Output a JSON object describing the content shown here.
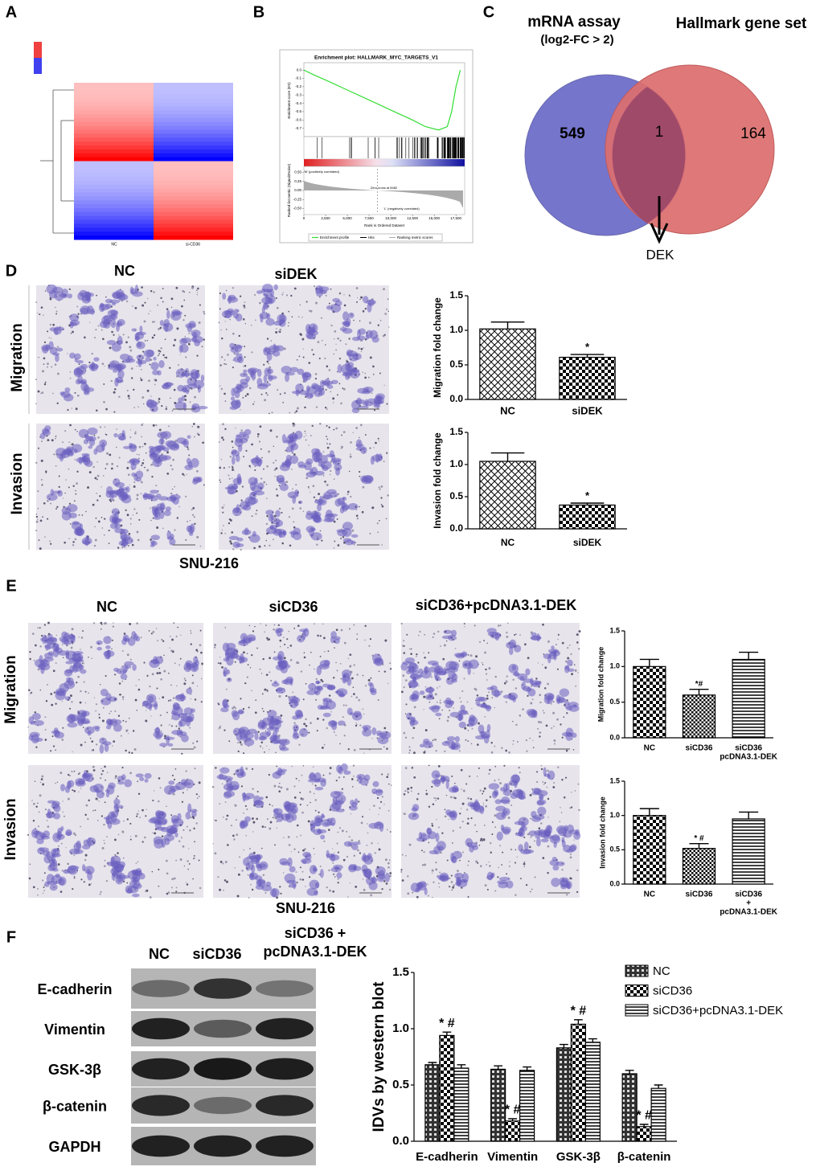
{
  "panel_labels": [
    "A",
    "B",
    "C",
    "D",
    "E",
    "F"
  ],
  "heatmap": {
    "columns": [
      "NC",
      "si-CD36"
    ]
  },
  "venn": {
    "left_title": "mRNA assay",
    "left_subtitle": "(log2-FC > 2)",
    "right_title": "Hallmark gene set",
    "left_only": 549,
    "both": 1,
    "right_only": 164,
    "gene": "DEK"
  },
  "panel_d": {
    "columns": [
      "NC",
      "siDEK"
    ],
    "rows": [
      "Migration",
      "Invasion"
    ],
    "cell_line": "SNU-216"
  },
  "panel_e": {
    "columns": [
      "NC",
      "siCD36",
      "siCD36+pcDNA3.1-DEK"
    ],
    "rows": [
      "Migration",
      "Invasion"
    ],
    "cell_line": "SNU-216"
  },
  "panel_f": {
    "columns": [
      "NC",
      "siCD36",
      [
        "siCD36 +",
        "pcDNA3.1-DEK"
      ]
    ],
    "proteins": [
      "E-cadherin",
      "Vimentin",
      "GSK-3β",
      "β-catenin",
      "GAPDH"
    ]
  },
  "chart_data": [
    {
      "type": "line",
      "title": "Enrichment plot: HALLMARK_MYC_TARGETS_V1",
      "y_label": "Enrichment score (ES)",
      "y2_label": "Ranked list metric (Signal2Noise)",
      "x_label": "Rank in Ordered Dataset",
      "x": [
        0,
        1000,
        2500,
        5000,
        7500,
        10000,
        12500,
        14000,
        15500,
        16500,
        17000,
        17500,
        18000
      ],
      "series": [
        {
          "name": "Enrichment profile",
          "color": "#33dd33",
          "values": [
            0,
            -0.05,
            -0.12,
            -0.24,
            -0.36,
            -0.48,
            -0.6,
            -0.68,
            -0.72,
            -0.68,
            -0.5,
            -0.2,
            0
          ]
        }
      ],
      "legend_extra": [
        "Hits",
        "Ranking metric scores"
      ],
      "positive_label": "'M' (positively correlated)",
      "negative_label": "'L' (negatively correlated)",
      "zero_cross_label": "Zero cross at 8462",
      "zero_cross": 8462,
      "xlim": [
        0,
        18500
      ],
      "xticks": [
        0,
        {
          "value": 2500,
          "label": "2,500"
        },
        {
          "value": 5000,
          "label": "5,000"
        },
        {
          "value": 7500,
          "label": "7,500"
        },
        {
          "value": 10000,
          "label": "10,000"
        },
        {
          "value": 12500,
          "label": "12,500"
        },
        {
          "value": 15000,
          "label": "15,000"
        },
        {
          "value": 17500,
          "label": "17,500"
        }
      ],
      "ylim": [
        -0.8,
        0.05
      ],
      "yticks": [
        {
          "value": 0,
          "label": "0.0"
        },
        -0.1,
        -0.2,
        -0.3,
        -0.4,
        -0.5,
        -0.6,
        -0.7
      ],
      "y2lim": [
        -0.6,
        0.6
      ],
      "y2ticks": [
        {
          "value": 0.5,
          "label": "0.50"
        },
        0.25,
        {
          "value": 0,
          "label": "0.00"
        },
        -0.25,
        {
          "value": -0.5,
          "label": "-0.50"
        }
      ]
    },
    {
      "type": "bar",
      "y_label": "Migration fold change",
      "categories": [
        "NC",
        "siDEK"
      ],
      "series": [
        {
          "values": [
            1.02,
            0.61
          ],
          "errors": [
            0.1,
            0.04
          ]
        }
      ],
      "patterns": [
        "crosshatch",
        "checker"
      ],
      "annotations": [
        {
          "series": 0,
          "index": 1,
          "text": "*"
        }
      ],
      "ylim": [
        0,
        1.5
      ],
      "yticks": [
        {
          "value": 0,
          "label": "0.0"
        },
        0.5,
        {
          "value": 1,
          "label": "1.0"
        },
        1.5
      ]
    },
    {
      "type": "bar",
      "y_label": "Invasion fold change",
      "categories": [
        "NC",
        "siDEK"
      ],
      "series": [
        {
          "values": [
            1.05,
            0.37
          ],
          "errors": [
            0.13,
            0.03
          ]
        }
      ],
      "patterns": [
        "crosshatch",
        "checker"
      ],
      "annotations": [
        {
          "series": 0,
          "index": 1,
          "text": "*"
        }
      ],
      "ylim": [
        0,
        1.5
      ],
      "yticks": [
        {
          "value": 0,
          "label": "0.0"
        },
        0.5,
        {
          "value": 1,
          "label": "1.0"
        },
        1.5
      ]
    },
    {
      "type": "bar",
      "y_label": "Migration fold change",
      "categories": [
        "NC",
        "siCD36",
        [
          "siCD36",
          "pcDNA3.1-DEK"
        ]
      ],
      "series": [
        {
          "values": [
            1.0,
            0.6,
            1.1
          ],
          "errors": [
            0.1,
            0.08,
            0.1
          ]
        }
      ],
      "patterns": [
        "checker",
        "checker-fine",
        "hlines"
      ],
      "annotations": [
        {
          "series": 0,
          "index": 1,
          "text": "*#"
        }
      ],
      "ylim": [
        0,
        1.5
      ],
      "yticks": [
        {
          "value": 0,
          "label": "0.0"
        },
        0.5,
        {
          "value": 1,
          "label": "1.0"
        },
        1.5
      ]
    },
    {
      "type": "bar",
      "y_label": "Invasion fold change",
      "categories": [
        "NC",
        "siCD36",
        [
          "siCD36",
          "+",
          "pcDNA3.1-DEK"
        ]
      ],
      "series": [
        {
          "values": [
            1.0,
            0.52,
            0.95
          ],
          "errors": [
            0.1,
            0.07,
            0.1
          ]
        }
      ],
      "patterns": [
        "checker",
        "checker-fine",
        "hlines"
      ],
      "annotations": [
        {
          "series": 0,
          "index": 1,
          "text": "* #"
        }
      ],
      "ylim": [
        0,
        1.5
      ],
      "yticks": [
        {
          "value": 0,
          "label": "0.0"
        },
        0.5,
        {
          "value": 1,
          "label": "1.0"
        },
        1.5
      ]
    },
    {
      "type": "bar",
      "y_label": "IDVs by western blot",
      "categories": [
        "E-cadherin",
        "Vimentin",
        "GSK-3β",
        "β-catenin"
      ],
      "series": [
        {
          "name": "NC",
          "pattern": "checker-dark",
          "values": [
            0.68,
            0.64,
            0.83,
            0.6
          ],
          "errors": [
            0.02,
            0.03,
            0.03,
            0.03
          ]
        },
        {
          "name": "siCD36",
          "pattern": "checker",
          "values": [
            0.94,
            0.18,
            1.04,
            0.13
          ],
          "errors": [
            0.03,
            0.02,
            0.04,
            0.02
          ]
        },
        {
          "name": "siCD36+pcDNA3.1-DEK",
          "pattern": "hlines",
          "values": [
            0.65,
            0.63,
            0.88,
            0.47
          ],
          "errors": [
            0.03,
            0.03,
            0.03,
            0.03
          ]
        }
      ],
      "annotations": [
        {
          "series": 1,
          "index": 0,
          "text": "* #"
        },
        {
          "series": 1,
          "index": 1,
          "text": "* #"
        },
        {
          "series": 1,
          "index": 2,
          "text": "* #"
        },
        {
          "series": 1,
          "index": 3,
          "text": "* #"
        }
      ],
      "ylim": [
        0,
        1.5
      ],
      "yticks": [
        {
          "value": 0,
          "label": "0.0"
        },
        0.5,
        {
          "value": 1,
          "label": "1.0"
        },
        1.5
      ]
    }
  ]
}
